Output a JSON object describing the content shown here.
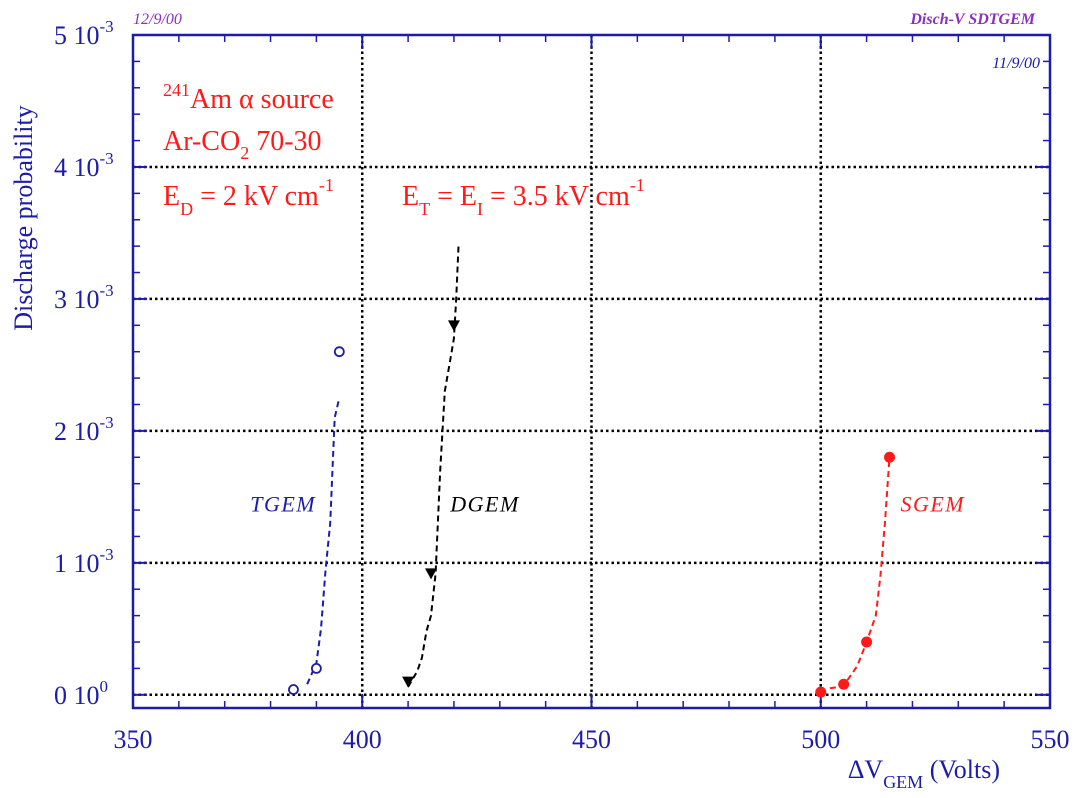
{
  "header": {
    "date_left": "12/9/00",
    "tag_right": "Disch-V SDTGEM",
    "date_inner": "11/9/00"
  },
  "colors": {
    "axis": "#1c1ca8",
    "header": "#8a2fc0",
    "tgem": "#1c1ca8",
    "dgem": "#000000",
    "sgem": "#ff1a1a",
    "annotation": "#ff1a1a"
  },
  "annotations": {
    "line1_sup": "241",
    "line1_text": "Am α source",
    "line2_pre": "Ar-CO",
    "line2_sub": "2",
    "line2_post": " 70-30",
    "line3_a": "E",
    "line3_a_sub": "D",
    "line3_b": " = 2 kV cm",
    "line3_b_sup": "-1",
    "line3_c": "E",
    "line3_c_sub": "T",
    "line3_d": " = E",
    "line3_d_sub": "I",
    "line3_e": " = 3.5 kV cm",
    "line3_e_sup": "-1"
  },
  "chart_data": {
    "type": "scatter",
    "xlabel": "ΔV",
    "xlabel_sub": "GEM",
    "xlabel_post": " (Volts)",
    "ylabel": "Discharge probability",
    "xlim": [
      350,
      550
    ],
    "ylim": [
      -0.0001,
      0.005
    ],
    "grid": true,
    "x_ticks": [
      "350",
      "400",
      "450",
      "500",
      "550"
    ],
    "y_ticks": [
      {
        "value": 0,
        "mantissa": "0",
        "exp": "0"
      },
      {
        "value": 0.001,
        "mantissa": "1",
        "exp": "-3"
      },
      {
        "value": 0.002,
        "mantissa": "2",
        "exp": "-3"
      },
      {
        "value": 0.003,
        "mantissa": "3",
        "exp": "-3"
      },
      {
        "value": 0.004,
        "mantissa": "4",
        "exp": "-3"
      },
      {
        "value": 0.005,
        "mantissa": "5",
        "exp": "-3"
      }
    ],
    "series": [
      {
        "name": "TGEM",
        "marker": "open-circle",
        "points": [
          [
            385,
            4e-05
          ],
          [
            390,
            0.0002
          ],
          [
            395,
            0.0026
          ]
        ],
        "fit": [
          [
            388,
            8e-05
          ],
          [
            389,
            0.00016
          ],
          [
            390,
            0.00024
          ],
          [
            391,
            0.0005
          ],
          [
            392,
            0.00095
          ],
          [
            393,
            0.0013
          ],
          [
            394,
            0.0021
          ],
          [
            395,
            0.00225
          ]
        ]
      },
      {
        "name": "DGEM",
        "marker": "filled-triangle-down",
        "points": [
          [
            410,
            0.0001
          ],
          [
            415,
            0.00092
          ],
          [
            420,
            0.0028
          ]
        ],
        "fit": [
          [
            410,
            6e-05
          ],
          [
            411,
            0.00012
          ],
          [
            412,
            0.00018
          ],
          [
            413,
            0.00028
          ],
          [
            414,
            0.00048
          ],
          [
            415,
            0.0006
          ],
          [
            416,
            0.00092
          ],
          [
            417,
            0.0017
          ],
          [
            418,
            0.0023
          ],
          [
            419,
            0.0025
          ],
          [
            420,
            0.0027
          ],
          [
            420.5,
            0.003
          ],
          [
            421,
            0.0034
          ]
        ]
      },
      {
        "name": "SGEM",
        "marker": "filled-circle",
        "points": [
          [
            500,
            2e-05
          ],
          [
            505,
            8e-05
          ],
          [
            510,
            0.0004
          ],
          [
            515,
            0.0018
          ]
        ],
        "fit": [
          [
            502,
            5e-05
          ],
          [
            504,
            6e-05
          ],
          [
            506,
            0.00012
          ],
          [
            508,
            0.00022
          ],
          [
            510,
            0.0004
          ],
          [
            512,
            0.0006
          ],
          [
            513,
            0.0009
          ],
          [
            514,
            0.0013
          ],
          [
            515,
            0.0018
          ]
        ]
      }
    ],
    "series_labels": [
      {
        "text": "TGEM",
        "x": 393,
        "y": 0.00145
      },
      {
        "text": "DGEM",
        "x": 420.5,
        "y": 0.00145
      },
      {
        "text": "SGEM",
        "x": 520,
        "y": 0.00145
      }
    ]
  }
}
